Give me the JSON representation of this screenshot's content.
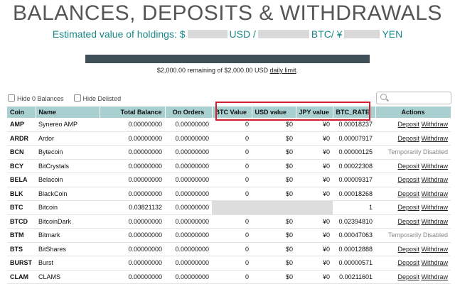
{
  "page": {
    "title": "BALANCES, DEPOSITS & WITHDRAWALS",
    "estimate_prefix": "Estimated value of holdings: $",
    "estimate_usd": "USD /",
    "estimate_btc": "BTC/ ¥",
    "estimate_yen": "YEN",
    "limit_text": "$2,000.00 remaining of $2,000.00 USD",
    "limit_link": "daily limit",
    "limit_period": ".",
    "limit_fraction_remaining": 1.0
  },
  "filters": {
    "hide_zero_label": "Hide 0 Balances",
    "hide_delisted_label": "Hide Delisted",
    "search_placeholder": ""
  },
  "table": {
    "headers": [
      "Coin",
      "Name",
      "Total Balance",
      "On Orders",
      "BTC Value",
      "USD value",
      "JPY value",
      "BTC_RATE",
      "Actions"
    ],
    "deposit_label": "Deposit",
    "withdraw_label": "Withdraw",
    "disabled_label": "Temporarily Disabled",
    "rows": [
      {
        "coin": "AMP",
        "name": "Synereo AMP",
        "total": "0.00000000",
        "orders": "0.00000000",
        "btc": "0",
        "usd": "$0",
        "jpy": "¥0",
        "rate": "0.00018237",
        "action": "links"
      },
      {
        "coin": "ARDR",
        "name": "Ardor",
        "total": "0.00000000",
        "orders": "0.00000000",
        "btc": "0",
        "usd": "$0",
        "jpy": "¥0",
        "rate": "0.00007917",
        "action": "links"
      },
      {
        "coin": "BCN",
        "name": "Bytecoin",
        "total": "0.00000000",
        "orders": "0.00000000",
        "btc": "0",
        "usd": "$0",
        "jpy": "¥0",
        "rate": "0.00000125",
        "action": "disabled"
      },
      {
        "coin": "BCY",
        "name": "BitCrystals",
        "total": "0.00000000",
        "orders": "0.00000000",
        "btc": "0",
        "usd": "$0",
        "jpy": "¥0",
        "rate": "0.00022308",
        "action": "links"
      },
      {
        "coin": "BELA",
        "name": "Belacoin",
        "total": "0.00000000",
        "orders": "0.00000000",
        "btc": "0",
        "usd": "$0",
        "jpy": "¥0",
        "rate": "0.00009317",
        "action": "links"
      },
      {
        "coin": "BLK",
        "name": "BlackCoin",
        "total": "0.00000000",
        "orders": "0.00000000",
        "btc": "0",
        "usd": "$0",
        "jpy": "¥0",
        "rate": "0.00018268",
        "action": "links"
      },
      {
        "coin": "BTC",
        "name": "Bitcoin",
        "total": "0.03821132",
        "orders": "0.00000000",
        "btc": "",
        "usd": "",
        "jpy": "",
        "rate": "1",
        "action": "links",
        "redacted": true
      },
      {
        "coin": "BTCD",
        "name": "BitcoinDark",
        "total": "0.00000000",
        "orders": "0.00000000",
        "btc": "0",
        "usd": "$0",
        "jpy": "¥0",
        "rate": "0.02394810",
        "action": "links"
      },
      {
        "coin": "BTM",
        "name": "Bitmark",
        "total": "0.00000000",
        "orders": "0.00000000",
        "btc": "0",
        "usd": "$0",
        "jpy": "¥0",
        "rate": "0.00047063",
        "action": "disabled"
      },
      {
        "coin": "BTS",
        "name": "BitShares",
        "total": "0.00000000",
        "orders": "0.00000000",
        "btc": "0",
        "usd": "$0",
        "jpy": "¥0",
        "rate": "0.00012888",
        "action": "links"
      },
      {
        "coin": "BURST",
        "name": "Burst",
        "total": "0.00000000",
        "orders": "0.00000000",
        "btc": "0",
        "usd": "$0",
        "jpy": "¥0",
        "rate": "0.00000571",
        "action": "links"
      },
      {
        "coin": "CLAM",
        "name": "CLAMS",
        "total": "0.00000000",
        "orders": "0.00000000",
        "btc": "0",
        "usd": "$0",
        "jpy": "¥0",
        "rate": "0.00211601",
        "action": "links"
      }
    ]
  },
  "colors": {
    "header_bg": "#a8d0d1",
    "accent_teal": "#1a8a87",
    "highlight_red": "#d01f2e",
    "limit_bar": "#3f4f56"
  }
}
